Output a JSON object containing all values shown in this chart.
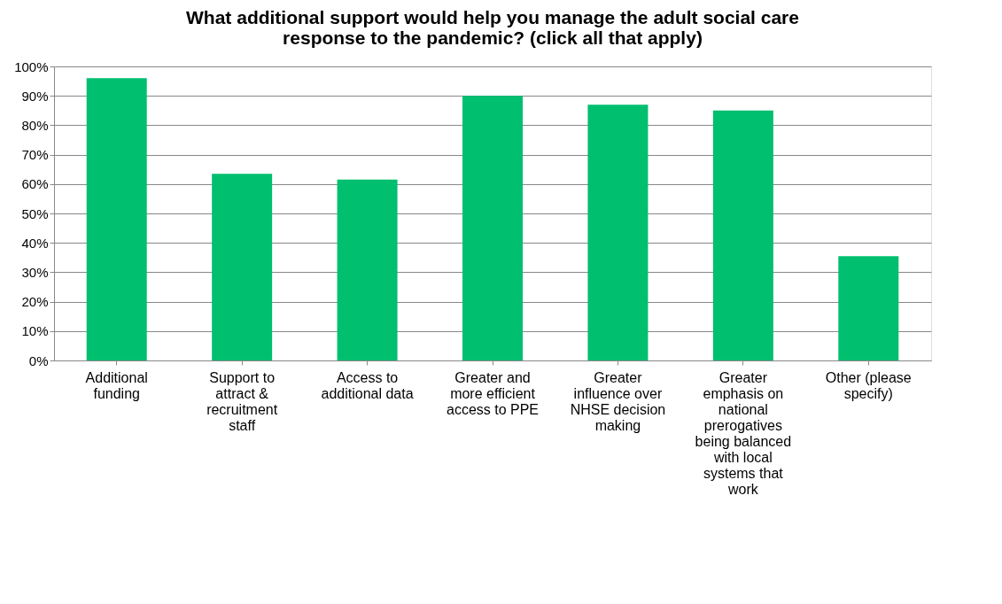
{
  "chart_data": {
    "type": "bar",
    "title": "What additional support would help you manage the adult social care response to the pandemic? (click all that apply)",
    "categories": [
      "Additional funding",
      "Support to attract & recruitment staff",
      "Access to additional data",
      "Greater and more efficient access to PPE",
      "Greater influence over NHSE decision making",
      "Greater emphasis on national prerogatives being balanced with local systems that work",
      "Other (please specify)"
    ],
    "values": [
      96,
      63.5,
      61.5,
      90,
      87,
      85,
      35.5
    ],
    "color": "#00bf6f",
    "ylim": [
      0,
      100
    ],
    "yticks": [
      {
        "value": 0,
        "label": "0%"
      },
      {
        "value": 10,
        "label": "10%"
      },
      {
        "value": 20,
        "label": "20%"
      },
      {
        "value": 30,
        "label": "30%"
      },
      {
        "value": 40,
        "label": "40%"
      },
      {
        "value": 50,
        "label": "50%"
      },
      {
        "value": 60,
        "label": "60%"
      },
      {
        "value": 70,
        "label": "70%"
      },
      {
        "value": 80,
        "label": "80%"
      },
      {
        "value": 90,
        "label": "90%"
      },
      {
        "value": 100,
        "label": "100%"
      }
    ],
    "grid": "y"
  }
}
